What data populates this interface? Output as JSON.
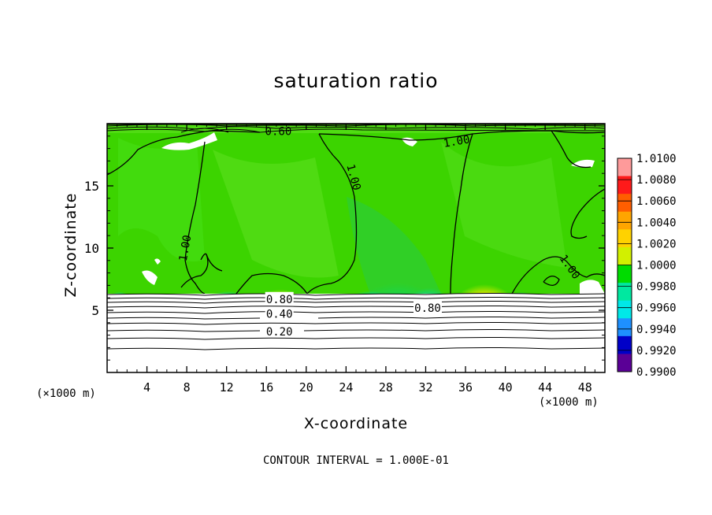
{
  "chart_data": {
    "type": "heatmap",
    "title": "saturation ratio",
    "xlabel": "X-coordinate",
    "ylabel": "Z-coordinate",
    "x_unit": "(×1000 m)",
    "x_unit_right": "(×1000 m)",
    "xlim": [
      0,
      50
    ],
    "ylim": [
      0,
      20
    ],
    "x_ticks": [
      "4",
      "8",
      "12",
      "16",
      "20",
      "24",
      "28",
      "32",
      "36",
      "40",
      "44",
      "48"
    ],
    "y_ticks": [
      "5",
      "10",
      "15"
    ],
    "colorbar": {
      "labels": [
        "1.0100",
        "1.0080",
        "1.0060",
        "1.0040",
        "1.0020",
        "1.0000",
        "0.9980",
        "0.9960",
        "0.9940",
        "0.9920",
        "0.9900"
      ],
      "colors": [
        "#fe9a9a",
        "#fe1a1a",
        "#ff5e00",
        "#ffa500",
        "#ffd200",
        "#d2f000",
        "#00dc00",
        "#00e8a0",
        "#00e8e8",
        "#1e90ff",
        "#0000c8",
        "#5a0096"
      ]
    },
    "contour_labels": [
      {
        "text": "0.80",
        "x": 17.3,
        "y": 5.9
      },
      {
        "text": "0.40",
        "x": 17.3,
        "y": 4.7
      },
      {
        "text": "0.20",
        "x": 17.3,
        "y": 3.3
      },
      {
        "text": "0.80",
        "x": 32.2,
        "y": 5.2
      },
      {
        "text": "1.00",
        "x": 7.8,
        "y": 10.0
      },
      {
        "text": "1.00",
        "x": 24.8,
        "y": 15.7
      },
      {
        "text": "1.00",
        "x": 35.1,
        "y": 18.6
      },
      {
        "text": "1.00",
        "x": 46.5,
        "y": 8.5
      },
      {
        "text": "0.60",
        "x": 17.2,
        "y": 19.4
      }
    ],
    "footer": "CONTOUR INTERVAL = 1.000E-01"
  }
}
